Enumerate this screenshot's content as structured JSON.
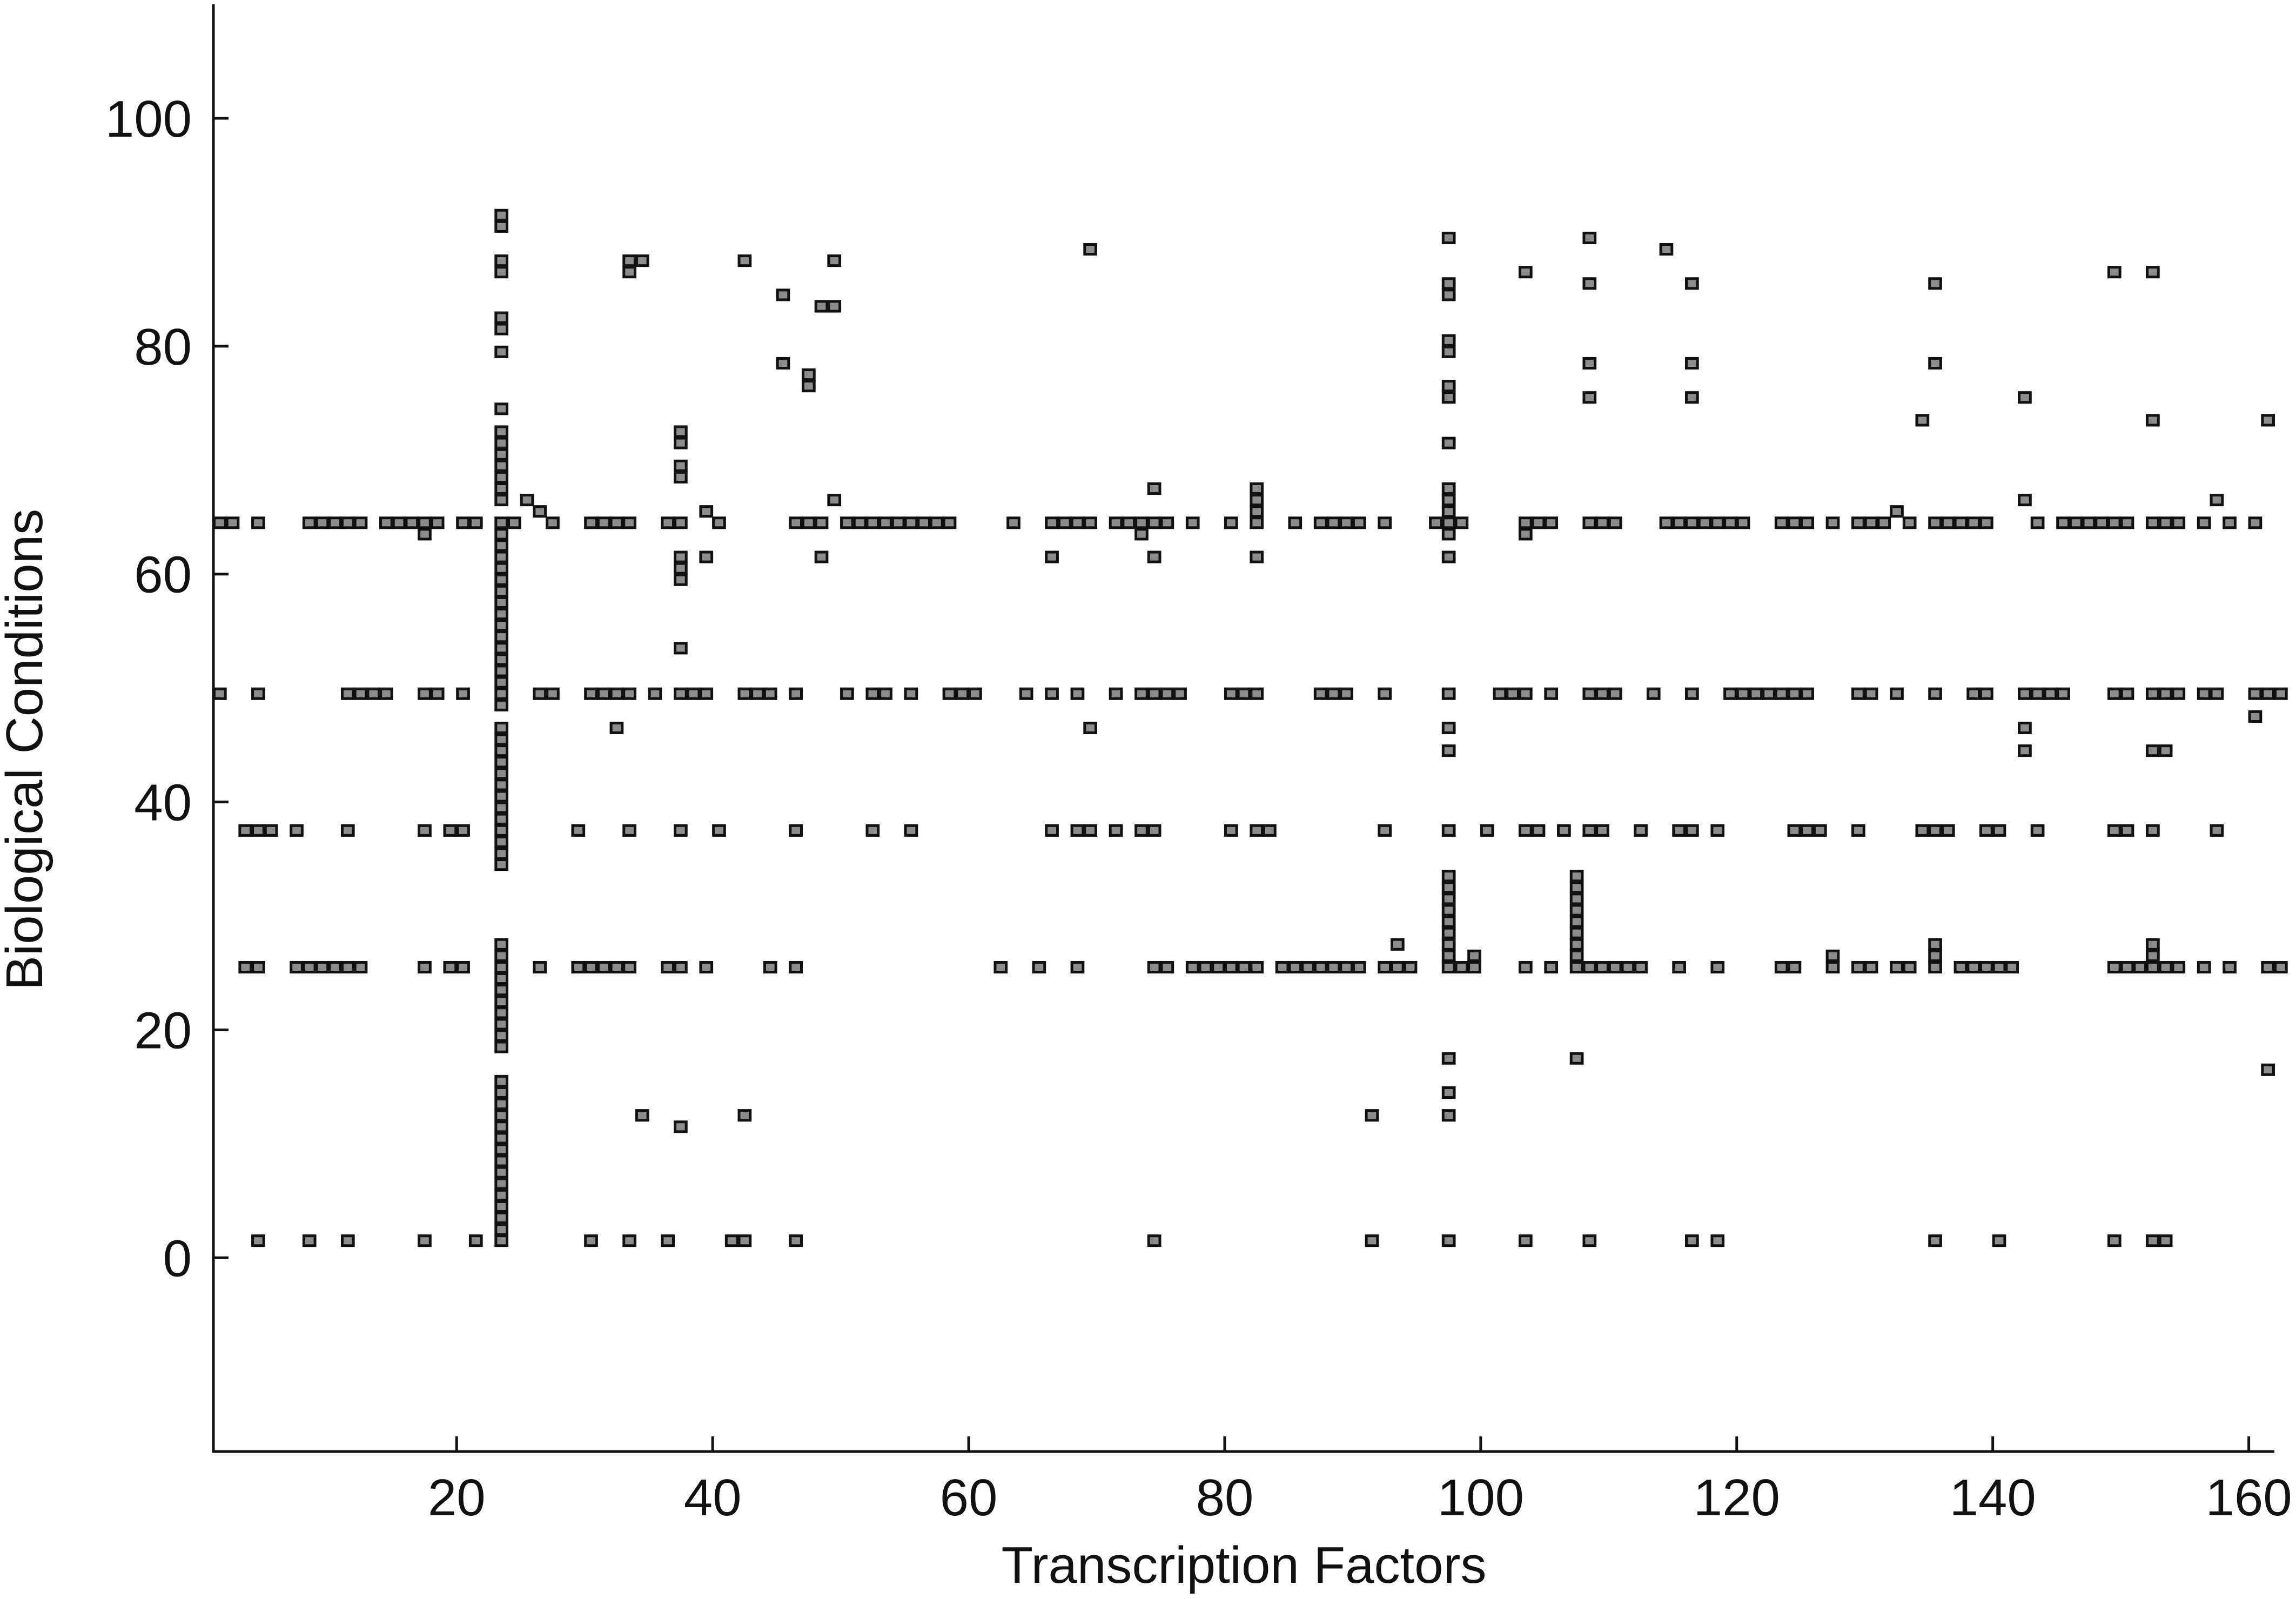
{
  "chart_data": {
    "type": "scatter",
    "title": "",
    "xlabel": "Transcription Factors",
    "ylabel": "Biological Conditions",
    "xlim": [
      1,
      162
    ],
    "ylim": [
      -17,
      110
    ],
    "xticks": [
      20,
      40,
      60,
      80,
      100,
      120,
      140,
      160
    ],
    "yticks": [
      0,
      20,
      40,
      60,
      80,
      100
    ],
    "marker_fill": "#8c8c8c",
    "marker_edge": "#1a1a1a",
    "grid": false,
    "legend": "none",
    "rows": [
      {
        "y": 1,
        "x": [
          4,
          8,
          11,
          17,
          21,
          23,
          30,
          33,
          36,
          41,
          42,
          46,
          74,
          91,
          97,
          103,
          108,
          116,
          118,
          135,
          140,
          149,
          152,
          153
        ]
      },
      {
        "y": 25,
        "x": [
          3,
          4,
          7,
          8,
          9,
          10,
          11,
          12,
          17,
          19,
          20,
          26,
          29,
          30,
          31,
          32,
          33,
          36,
          37,
          39,
          44,
          46,
          62,
          65,
          68,
          74,
          75,
          77,
          78,
          79,
          80,
          81,
          82,
          84,
          85,
          86,
          87,
          88,
          89,
          90,
          92,
          93,
          94,
          97,
          98,
          99,
          103,
          105,
          107,
          108,
          109,
          110,
          111,
          112,
          115,
          118,
          123,
          124,
          127,
          129,
          130,
          132,
          133,
          135,
          137,
          138,
          139,
          140,
          141,
          149,
          150,
          151,
          152,
          153,
          154,
          156,
          158,
          161,
          162
        ]
      },
      {
        "y": 37,
        "x": [
          3,
          4,
          5,
          7,
          11,
          17,
          19,
          20,
          29,
          33,
          37,
          40,
          46,
          52,
          55,
          66,
          68,
          69,
          71,
          73,
          74,
          80,
          82,
          83,
          92,
          97,
          100,
          103,
          104,
          106,
          108,
          109,
          112,
          115,
          116,
          118,
          124,
          125,
          126,
          129,
          134,
          135,
          136,
          139,
          140,
          143,
          149,
          150,
          152,
          157
        ]
      },
      {
        "y": 49,
        "x": [
          1,
          4,
          11,
          12,
          13,
          14,
          17,
          18,
          20,
          26,
          27,
          30,
          31,
          32,
          33,
          35,
          37,
          38,
          39,
          42,
          43,
          44,
          46,
          50,
          52,
          53,
          55,
          58,
          59,
          60,
          64,
          66,
          68,
          71,
          73,
          74,
          75,
          76,
          80,
          81,
          82,
          87,
          88,
          89,
          92,
          97,
          101,
          102,
          103,
          105,
          108,
          109,
          110,
          113,
          116,
          119,
          120,
          121,
          122,
          123,
          124,
          125,
          129,
          130,
          132,
          135,
          138,
          139,
          142,
          143,
          144,
          145,
          149,
          150,
          152,
          153,
          154,
          156,
          157,
          160,
          161,
          162
        ]
      },
      {
        "y": 64,
        "x": [
          1,
          2,
          4,
          8,
          9,
          10,
          11,
          12,
          14,
          15,
          16,
          17,
          18,
          20,
          21,
          24,
          27,
          30,
          31,
          32,
          33,
          36,
          37,
          40,
          46,
          47,
          48,
          50,
          51,
          52,
          53,
          54,
          55,
          56,
          57,
          58,
          63,
          66,
          67,
          68,
          69,
          71,
          72,
          73,
          74,
          75,
          77,
          80,
          82,
          85,
          87,
          88,
          89,
          90,
          92,
          96,
          97,
          98,
          103,
          104,
          105,
          108,
          109,
          110,
          114,
          115,
          116,
          117,
          118,
          119,
          120,
          123,
          124,
          125,
          127,
          129,
          130,
          131,
          133,
          135,
          136,
          137,
          138,
          139,
          143,
          145,
          146,
          147,
          148,
          149,
          150,
          152,
          153,
          154,
          156,
          158,
          160
        ]
      }
    ],
    "columns": [
      {
        "x": 23,
        "y_from": 2,
        "y_to": 15
      },
      {
        "x": 23,
        "y_from": 18,
        "y_to": 27
      },
      {
        "x": 23,
        "y_from": 34,
        "y_to": 46
      },
      {
        "x": 23,
        "y_from": 48,
        "y_to": 64
      },
      {
        "x": 23,
        "y_from": 66,
        "y_to": 72
      },
      {
        "x": 97,
        "y_from": 26,
        "y_to": 33
      },
      {
        "x": 107,
        "y_from": 26,
        "y_to": 33
      }
    ],
    "points": [
      {
        "x": 23,
        "y": 74
      },
      {
        "x": 23,
        "y": 79
      },
      {
        "x": 23,
        "y": 81
      },
      {
        "x": 23,
        "y": 82
      },
      {
        "x": 23,
        "y": 86
      },
      {
        "x": 23,
        "y": 87
      },
      {
        "x": 23,
        "y": 90
      },
      {
        "x": 23,
        "y": 91
      },
      {
        "x": 25,
        "y": 66
      },
      {
        "x": 26,
        "y": 65
      },
      {
        "x": 17,
        "y": 63
      },
      {
        "x": 33,
        "y": 86
      },
      {
        "x": 33,
        "y": 87
      },
      {
        "x": 34,
        "y": 87
      },
      {
        "x": 37,
        "y": 53
      },
      {
        "x": 37,
        "y": 59
      },
      {
        "x": 37,
        "y": 60
      },
      {
        "x": 37,
        "y": 61
      },
      {
        "x": 37,
        "y": 68
      },
      {
        "x": 37,
        "y": 69
      },
      {
        "x": 37,
        "y": 71
      },
      {
        "x": 37,
        "y": 72
      },
      {
        "x": 39,
        "y": 61
      },
      {
        "x": 39,
        "y": 65
      },
      {
        "x": 42,
        "y": 87
      },
      {
        "x": 45,
        "y": 78
      },
      {
        "x": 45,
        "y": 84
      },
      {
        "x": 47,
        "y": 76
      },
      {
        "x": 47,
        "y": 77
      },
      {
        "x": 48,
        "y": 61
      },
      {
        "x": 48,
        "y": 83
      },
      {
        "x": 49,
        "y": 83
      },
      {
        "x": 49,
        "y": 87
      },
      {
        "x": 49,
        "y": 66
      },
      {
        "x": 32,
        "y": 46
      },
      {
        "x": 34,
        "y": 12
      },
      {
        "x": 37,
        "y": 11
      },
      {
        "x": 42,
        "y": 12
      },
      {
        "x": 69,
        "y": 88
      },
      {
        "x": 66,
        "y": 61
      },
      {
        "x": 69,
        "y": 46
      },
      {
        "x": 73,
        "y": 63
      },
      {
        "x": 74,
        "y": 61
      },
      {
        "x": 74,
        "y": 67
      },
      {
        "x": 82,
        "y": 61
      },
      {
        "x": 82,
        "y": 65
      },
      {
        "x": 82,
        "y": 66
      },
      {
        "x": 82,
        "y": 67
      },
      {
        "x": 93,
        "y": 27
      },
      {
        "x": 91,
        "y": 12
      },
      {
        "x": 97,
        "y": 12
      },
      {
        "x": 97,
        "y": 14
      },
      {
        "x": 97,
        "y": 17
      },
      {
        "x": 97,
        "y": 44
      },
      {
        "x": 97,
        "y": 46
      },
      {
        "x": 97,
        "y": 61
      },
      {
        "x": 97,
        "y": 63
      },
      {
        "x": 97,
        "y": 65
      },
      {
        "x": 97,
        "y": 66
      },
      {
        "x": 97,
        "y": 67
      },
      {
        "x": 97,
        "y": 71
      },
      {
        "x": 97,
        "y": 75
      },
      {
        "x": 97,
        "y": 76
      },
      {
        "x": 97,
        "y": 79
      },
      {
        "x": 97,
        "y": 80
      },
      {
        "x": 97,
        "y": 84
      },
      {
        "x": 97,
        "y": 85
      },
      {
        "x": 97,
        "y": 89
      },
      {
        "x": 99,
        "y": 26
      },
      {
        "x": 103,
        "y": 63
      },
      {
        "x": 103,
        "y": 86
      },
      {
        "x": 107,
        "y": 17
      },
      {
        "x": 108,
        "y": 75
      },
      {
        "x": 108,
        "y": 78
      },
      {
        "x": 108,
        "y": 85
      },
      {
        "x": 108,
        "y": 89
      },
      {
        "x": 114,
        "y": 88
      },
      {
        "x": 116,
        "y": 75
      },
      {
        "x": 116,
        "y": 78
      },
      {
        "x": 116,
        "y": 85
      },
      {
        "x": 127,
        "y": 26
      },
      {
        "x": 132,
        "y": 65
      },
      {
        "x": 134,
        "y": 73
      },
      {
        "x": 135,
        "y": 26
      },
      {
        "x": 135,
        "y": 27
      },
      {
        "x": 135,
        "y": 78
      },
      {
        "x": 135,
        "y": 85
      },
      {
        "x": 142,
        "y": 44
      },
      {
        "x": 142,
        "y": 46
      },
      {
        "x": 142,
        "y": 66
      },
      {
        "x": 142,
        "y": 75
      },
      {
        "x": 149,
        "y": 86
      },
      {
        "x": 152,
        "y": 26
      },
      {
        "x": 152,
        "y": 27
      },
      {
        "x": 152,
        "y": 44
      },
      {
        "x": 153,
        "y": 44
      },
      {
        "x": 152,
        "y": 73
      },
      {
        "x": 152,
        "y": 86
      },
      {
        "x": 157,
        "y": 66
      },
      {
        "x": 160,
        "y": 47
      },
      {
        "x": 161,
        "y": 16
      },
      {
        "x": 161,
        "y": 73
      }
    ]
  }
}
